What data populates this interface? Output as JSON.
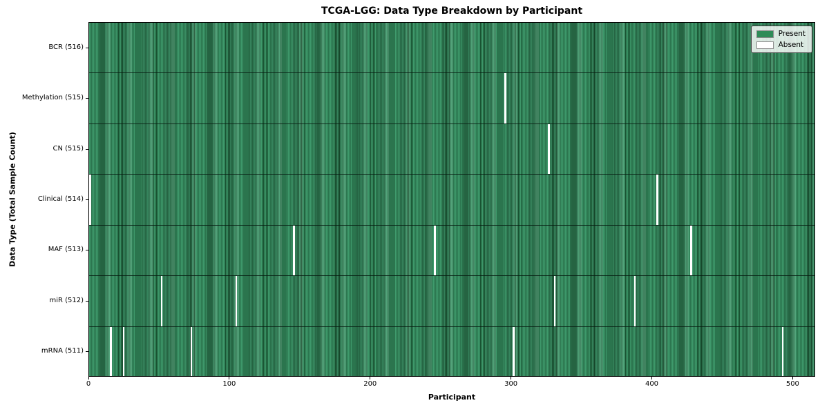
{
  "figure": {
    "title": "TCGA-LGG: Data Type Breakdown by Participant",
    "xlabel": "Participant",
    "ylabel": "Data Type (Total Sample Count)"
  },
  "legend": {
    "items": [
      {
        "label": "Present",
        "color": "#2e8b57"
      },
      {
        "label": "Absent",
        "color": "#ffffff"
      }
    ]
  },
  "chart_data": {
    "type": "heatmap",
    "title": "TCGA-LGG: Data Type Breakdown by Participant",
    "xlabel": "Participant",
    "ylabel": "Data Type (Total Sample Count)",
    "x_ticks": [
      0,
      100,
      200,
      300,
      400,
      500
    ],
    "xlim": [
      0,
      516
    ],
    "n_participants": 516,
    "legend_position": "upper right",
    "legend_entries": [
      "Present",
      "Absent"
    ],
    "rows": [
      {
        "label": "BCR (516)",
        "data_type": "BCR",
        "present_count": 516,
        "absent_participants": []
      },
      {
        "label": "Methylation (515)",
        "data_type": "Methylation",
        "present_count": 515,
        "absent_participants": [
          295
        ]
      },
      {
        "label": "CN (515)",
        "data_type": "CN",
        "present_count": 515,
        "absent_participants": [
          326
        ]
      },
      {
        "label": "Clinical (514)",
        "data_type": "Clinical",
        "present_count": 514,
        "absent_participants": [
          0,
          403
        ]
      },
      {
        "label": "MAF (513)",
        "data_type": "MAF",
        "present_count": 513,
        "absent_participants": [
          145,
          245,
          427
        ]
      },
      {
        "label": "miR (512)",
        "data_type": "miR",
        "present_count": 512,
        "absent_participants": [
          51,
          104,
          330,
          387
        ]
      },
      {
        "label": "mRNA (511)",
        "data_type": "mRNA",
        "present_count": 511,
        "absent_participants": [
          15,
          24,
          72,
          301,
          492
        ]
      }
    ],
    "colors": {
      "present": "#2e8b57",
      "present_stripe_light": "#3f9a6c",
      "present_stripe_dark": "#17502f",
      "absent": "#ffffff",
      "row_separator": "#0a1f12",
      "axis": "#000000"
    }
  }
}
